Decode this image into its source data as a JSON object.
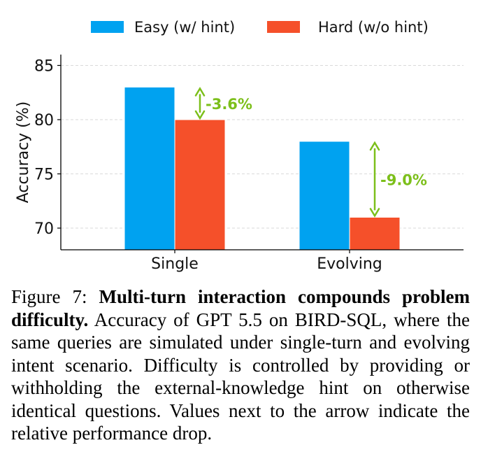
{
  "chart_data": {
    "type": "bar",
    "categories": [
      "Single",
      "Evolving"
    ],
    "series": [
      {
        "name": "Easy (w/ hint)",
        "values": [
          83.0,
          78.0
        ],
        "color": "#00a2f0"
      },
      {
        "name": "Hard (w/o hint)",
        "values": [
          80.0,
          71.0
        ],
        "color": "#f5502a"
      }
    ],
    "ylabel": "Accuracy (%)",
    "yticks": [
      70,
      75,
      80,
      85
    ],
    "ylim": [
      68,
      86
    ],
    "grid": "y-dashed",
    "legend": "top",
    "annotations": [
      {
        "category": "Single",
        "text": "-3.6%",
        "from": 83.0,
        "to": 80.0
      },
      {
        "category": "Evolving",
        "text": "-9.0%",
        "from": 78.0,
        "to": 71.0
      }
    ],
    "annotation_color": "#7cbf1a"
  },
  "caption": {
    "figure_label": "Figure 7:",
    "bold_title": "Multi-turn interaction compounds problem difficulty.",
    "body": "Accuracy of GPT 5.5 on BIRD-SQL, where the same queries are simulated under single-turn and evolving intent scenario. Difficulty is controlled by providing or withholding the external-knowledge hint on otherwise identical questions. Values next to the arrow indicate the relative performance drop."
  }
}
